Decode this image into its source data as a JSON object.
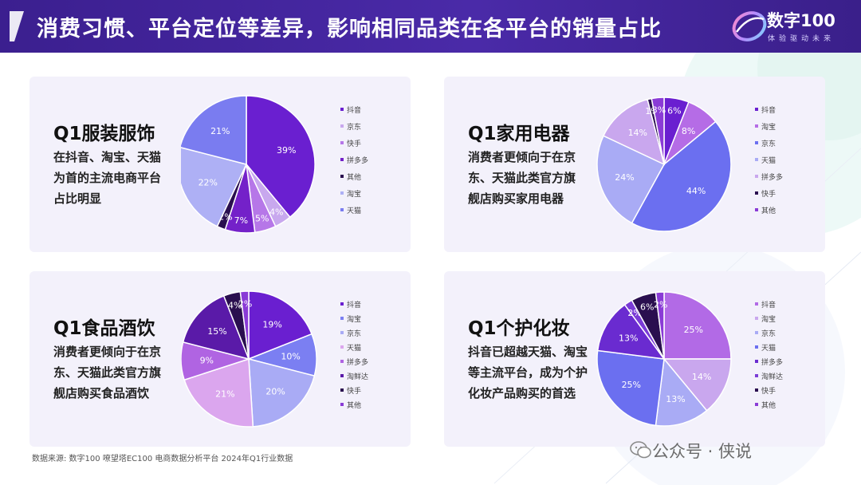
{
  "header": {
    "title": "消费习惯、平台定位等差异，影响相同品类在各平台的销量占比",
    "brand_name": "数字100",
    "brand_slogan": "体验驱动未来"
  },
  "footer": {
    "source": "数据来源:    数字100 嘹望塔EC100 电商数据分析平台  2024年Q1行业数据",
    "watermark": "公众号 · 侠说"
  },
  "colors": {
    "header_bg": "#3b1f8f",
    "card_bg": "#f3f1fb"
  },
  "chart_data": [
    {
      "type": "pie",
      "title": "Q1服装服饰",
      "description": [
        "在抖音、淘宝、天猫",
        "为首的主流电商平台",
        "占比明显"
      ],
      "labels": [
        "抖音",
        "京东",
        "快手",
        "拼多多",
        "其他",
        "淘宝",
        "天猫"
      ],
      "values": [
        39,
        4,
        5,
        7,
        2,
        22,
        21
      ],
      "colors": [
        "#6a1fd0",
        "#c8a8ee",
        "#b677e8",
        "#7421c9",
        "#2a0f4f",
        "#aeb0f5",
        "#7a7cf0"
      ],
      "legend": "right"
    },
    {
      "type": "pie",
      "title": "Q1家用电器",
      "description": [
        "消费者更倾向于在京",
        "东、天猫此类官方旗",
        "舰店购买家用电器"
      ],
      "labels": [
        "抖音",
        "淘宝",
        "京东",
        "天猫",
        "拼多多",
        "快手",
        "其他"
      ],
      "values": [
        6,
        8,
        44,
        24,
        14,
        1,
        3
      ],
      "colors": [
        "#6a1fd0",
        "#b56ce6",
        "#6b6ff0",
        "#a9abf5",
        "#c9a7ee",
        "#2a0f4f",
        "#8a3bd6"
      ],
      "legend": "right"
    },
    {
      "type": "pie",
      "title": "Q1食品酒饮",
      "description": [
        "消费者更倾向于在京",
        "东、天猫此类官方旗",
        "舰店购买食品酒饮"
      ],
      "labels": [
        "抖音",
        "淘宝",
        "京东",
        "天猫",
        "拼多多",
        "淘鲜达",
        "快手",
        "其他"
      ],
      "values": [
        19,
        10,
        20,
        21,
        9,
        15,
        4,
        2
      ],
      "colors": [
        "#6a1fd0",
        "#7b7ff2",
        "#a9abf5",
        "#dba6ee",
        "#b064e2",
        "#5a1aa8",
        "#2a0f4f",
        "#8a3bd6"
      ],
      "legend": "right"
    },
    {
      "type": "pie",
      "title": "Q1个护化妆",
      "description": [
        "抖音已超越天猫、淘宝",
        "等主流平台，成为个护",
        "化妆产品购买的首选"
      ],
      "labels": [
        "抖音",
        "淘宝",
        "京东",
        "天猫",
        "拼多多",
        "淘鲜达",
        "快手",
        "其他"
      ],
      "values": [
        25,
        14,
        13,
        25,
        13,
        2,
        6,
        2
      ],
      "colors": [
        "#b26ae6",
        "#c9a7ee",
        "#a9abf5",
        "#6b6ff0",
        "#6a2bd0",
        "#7a3bd6",
        "#2a0f4f",
        "#8a3bd6"
      ],
      "legend": "right"
    }
  ]
}
